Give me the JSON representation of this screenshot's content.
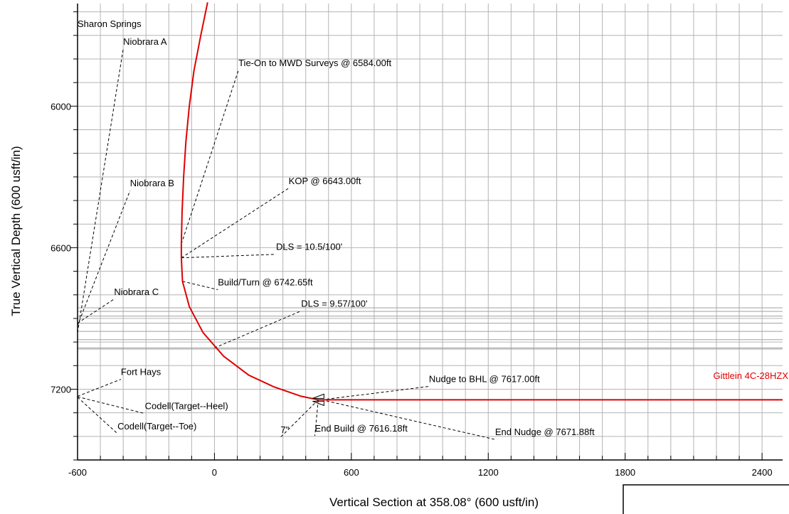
{
  "chart_data": {
    "type": "line",
    "title": "",
    "xlabel": "Vertical Section at 358.08° (600 usft/in)",
    "ylabel": "True Vertical Depth (600 usft/in)",
    "xlim": [
      -600,
      2490
    ],
    "ylim": [
      7500,
      5565
    ],
    "x_ticks": [
      -600,
      0,
      600,
      1200,
      1800,
      2400
    ],
    "y_ticks": [
      6000,
      6600,
      7200
    ],
    "series": [
      {
        "name": "Gittlein 4C-28HZX",
        "color": "#e00000",
        "points": [
          [
            -30,
            5560
          ],
          [
            -60,
            5700
          ],
          [
            -90,
            5850
          ],
          [
            -110,
            6000
          ],
          [
            -125,
            6150
          ],
          [
            -135,
            6300
          ],
          [
            -142,
            6450
          ],
          [
            -145,
            6584
          ],
          [
            -145,
            6643
          ],
          [
            -140,
            6742.65
          ],
          [
            -110,
            6850
          ],
          [
            -50,
            6960
          ],
          [
            40,
            7060
          ],
          [
            150,
            7140
          ],
          [
            260,
            7190
          ],
          [
            380,
            7230
          ],
          [
            455,
            7245
          ],
          [
            470,
            7245
          ],
          [
            600,
            7245
          ],
          [
            1200,
            7245
          ],
          [
            1800,
            7245
          ],
          [
            2490,
            7245
          ]
        ]
      }
    ],
    "formation_tops_tvd": [
      6855,
      6870,
      6890,
      6920,
      6955,
      6990,
      7025,
      7030
    ],
    "formations": [
      {
        "label": "Sharon Springs",
        "x": -600,
        "tvd": 7000,
        "label_x": -600,
        "label_tvd": 5665
      },
      {
        "label": "Niobrara A",
        "x": -600,
        "tvd": 6960,
        "label_x": -400,
        "label_tvd": 5740
      },
      {
        "label": "Niobrara B",
        "x": -600,
        "tvd": 6930,
        "label_x": -370,
        "label_tvd": 6340
      },
      {
        "label": "Niobrara C",
        "x": -600,
        "tvd": 6920,
        "label_x": -440,
        "label_tvd": 6800
      },
      {
        "label": "Fort Hays",
        "x": -600,
        "tvd": 7230,
        "label_x": -410,
        "label_tvd": 7140
      },
      {
        "label": "Codell(Target--Heel)",
        "x": -600,
        "tvd": 7232,
        "label_x": -305,
        "label_tvd": 7285
      },
      {
        "label": "Codell(Target--Toe)",
        "x": -600,
        "tvd": 7234,
        "label_x": -425,
        "label_tvd": 7370
      }
    ],
    "annotations": [
      {
        "label": "Tie-On to MWD Surveys @ 6584.00ft",
        "x": -145,
        "tvd": 6584,
        "label_x": 105,
        "label_tvd": 5830
      },
      {
        "label": "KOP @ 6643.00ft",
        "x": -145,
        "tvd": 6643,
        "label_x": 325,
        "label_tvd": 6330
      },
      {
        "label": "DLS = 10.5/100'",
        "x": -145,
        "tvd": 6643,
        "label_x": 270,
        "label_tvd": 6610
      },
      {
        "label": "Build/Turn @ 6742.65ft",
        "x": -140,
        "tvd": 6742.65,
        "label_x": 15,
        "label_tvd": 6760
      },
      {
        "label": "DLS = 9.57/100'",
        "x": 0,
        "tvd": 7025,
        "label_x": 380,
        "label_tvd": 6850
      },
      {
        "label": "Nudge to BHL @ 7617.00ft",
        "x": 470,
        "tvd": 7245,
        "label_x": 940,
        "label_tvd": 7170
      },
      {
        "label": "End Build @ 7616.18ft",
        "x": 455,
        "tvd": 7245,
        "label_x": 440,
        "label_tvd": 7380
      },
      {
        "label": "End Nudge @ 7671.88ft",
        "x": 470,
        "tvd": 7245,
        "label_x": 1230,
        "label_tvd": 7395
      },
      {
        "label": "7\"",
        "x": 455,
        "tvd": 7245,
        "label_x": 290,
        "label_tvd": 7385
      }
    ]
  }
}
